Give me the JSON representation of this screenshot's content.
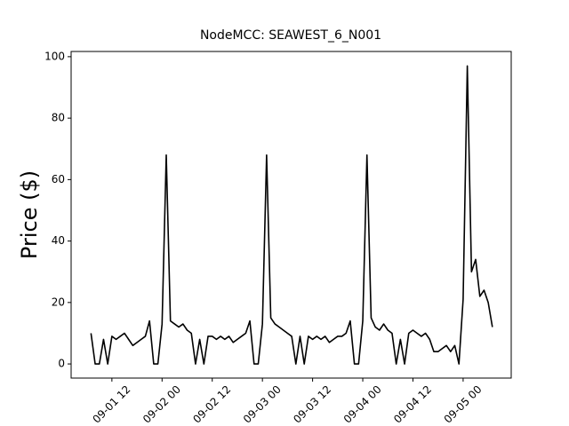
{
  "chart_data": {
    "type": "line",
    "title": "NodeMCC: SEAWEST_6_N001",
    "y_label": "Price ($)",
    "x": [
      "09-01 07:00",
      "09-01 08:00",
      "09-01 09:00",
      "09-01 10:00",
      "09-01 11:00",
      "09-01 12:00",
      "09-01 13:00",
      "09-01 14:00",
      "09-01 15:00",
      "09-01 16:00",
      "09-01 17:00",
      "09-01 18:00",
      "09-01 19:00",
      "09-01 20:00",
      "09-01 21:00",
      "09-01 22:00",
      "09-01 23:00",
      "09-02 00:00",
      "09-02 01:00",
      "09-02 02:00",
      "09-02 03:00",
      "09-02 04:00",
      "09-02 05:00",
      "09-02 06:00",
      "09-02 07:00",
      "09-02 08:00",
      "09-02 09:00",
      "09-02 10:00",
      "09-02 11:00",
      "09-02 12:00",
      "09-02 13:00",
      "09-02 14:00",
      "09-02 15:00",
      "09-02 16:00",
      "09-02 17:00",
      "09-02 18:00",
      "09-02 19:00",
      "09-02 20:00",
      "09-02 21:00",
      "09-02 22:00",
      "09-02 23:00",
      "09-03 00:00",
      "09-03 01:00",
      "09-03 02:00",
      "09-03 03:00",
      "09-03 04:00",
      "09-03 05:00",
      "09-03 06:00",
      "09-03 07:00",
      "09-03 08:00",
      "09-03 09:00",
      "09-03 10:00",
      "09-03 11:00",
      "09-03 12:00",
      "09-03 13:00",
      "09-03 14:00",
      "09-03 15:00",
      "09-03 16:00",
      "09-03 17:00",
      "09-03 18:00",
      "09-03 19:00",
      "09-03 20:00",
      "09-03 21:00",
      "09-03 22:00",
      "09-03 23:00",
      "09-04 00:00",
      "09-04 01:00",
      "09-04 02:00",
      "09-04 03:00",
      "09-04 04:00",
      "09-04 05:00",
      "09-04 06:00",
      "09-04 07:00",
      "09-04 08:00",
      "09-04 09:00",
      "09-04 10:00",
      "09-04 11:00",
      "09-04 12:00",
      "09-04 13:00",
      "09-04 14:00",
      "09-04 15:00",
      "09-04 16:00",
      "09-04 17:00",
      "09-04 18:00",
      "09-04 19:00",
      "09-04 20:00",
      "09-04 21:00",
      "09-04 22:00",
      "09-04 23:00",
      "09-05 00:00",
      "09-05 01:00",
      "09-05 02:00",
      "09-05 03:00",
      "09-05 04:00",
      "09-05 05:00",
      "09-05 06:00",
      "09-05 07:00"
    ],
    "series": [
      {
        "color": "#000000",
        "values": [
          10,
          0,
          0,
          8,
          0,
          9,
          8,
          9,
          10,
          8,
          6,
          7,
          8,
          9,
          14,
          0,
          0,
          13,
          68,
          14,
          13,
          12,
          13,
          11,
          10,
          0,
          8,
          0,
          9,
          9,
          8,
          9,
          8,
          9,
          7,
          8,
          9,
          10,
          14,
          0,
          0,
          13,
          68,
          15,
          13,
          12,
          11,
          10,
          9,
          0,
          9,
          0,
          9,
          8,
          9,
          8,
          9,
          7,
          8,
          9,
          9,
          10,
          14,
          0,
          0,
          14,
          68,
          15,
          12,
          11,
          13,
          11,
          10,
          0,
          8,
          0,
          10,
          11,
          10,
          9,
          10,
          8,
          4,
          4,
          5,
          6,
          4,
          6,
          0,
          21,
          97,
          30,
          34,
          22,
          24,
          20,
          12
        ]
      }
    ],
    "xlim": [
      "09-01 02:15",
      "09-05 11:30"
    ],
    "xticks": [
      {
        "value": "09-01 12:00",
        "label": "09-01 12"
      },
      {
        "value": "09-02 00:00",
        "label": "09-02 00"
      },
      {
        "value": "09-02 12:00",
        "label": "09-02 12"
      },
      {
        "value": "09-03 00:00",
        "label": "09-03 00"
      },
      {
        "value": "09-03 12:00",
        "label": "09-03 12"
      },
      {
        "value": "09-04 00:00",
        "label": "09-04 00"
      },
      {
        "value": "09-04 12:00",
        "label": "09-04 12"
      },
      {
        "value": "09-05 00:00",
        "label": "09-05 00"
      }
    ],
    "ylim": [
      -4.6,
      101.7
    ],
    "yticks": [
      0,
      20,
      40,
      60,
      80,
      100
    ],
    "grid": false
  }
}
